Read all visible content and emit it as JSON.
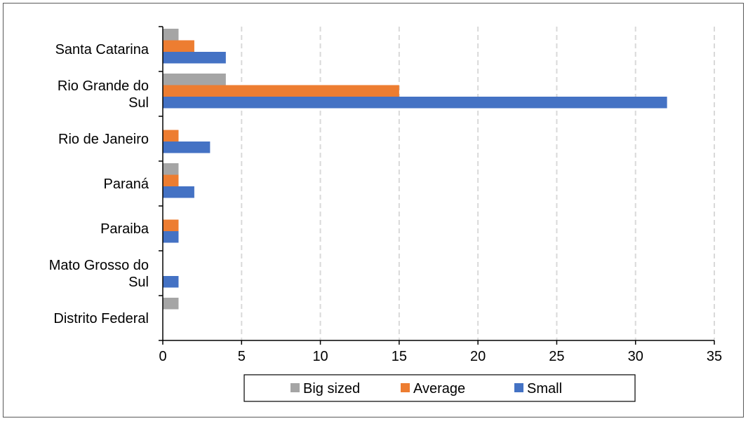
{
  "chart_data": {
    "type": "bar",
    "orientation": "horizontal",
    "title": "",
    "xlabel": "",
    "ylabel": "",
    "categories": [
      [
        "Santa Catarina"
      ],
      [
        "Rio Grande do",
        "Sul"
      ],
      [
        "Rio de Janeiro"
      ],
      [
        "Paraná"
      ],
      [
        "Paraiba"
      ],
      [
        "Mato Grosso do",
        "Sul"
      ],
      [
        "Distrito Federal"
      ]
    ],
    "series": [
      {
        "name": "Big sized",
        "color": "#a5a5a5",
        "values": [
          1,
          4,
          0,
          1,
          0,
          0,
          1
        ]
      },
      {
        "name": "Average",
        "color": "#ed7d31",
        "values": [
          2,
          15,
          1,
          1,
          1,
          0,
          0
        ]
      },
      {
        "name": "Small",
        "color": "#4472c4",
        "values": [
          4,
          32,
          3,
          2,
          1,
          1,
          0
        ]
      }
    ],
    "xlim": [
      0,
      35
    ],
    "xticks": [
      "0",
      "5",
      "10",
      "15",
      "20",
      "25",
      "30",
      "35"
    ],
    "grid": "vertical dashed",
    "legend_position": "bottom"
  }
}
